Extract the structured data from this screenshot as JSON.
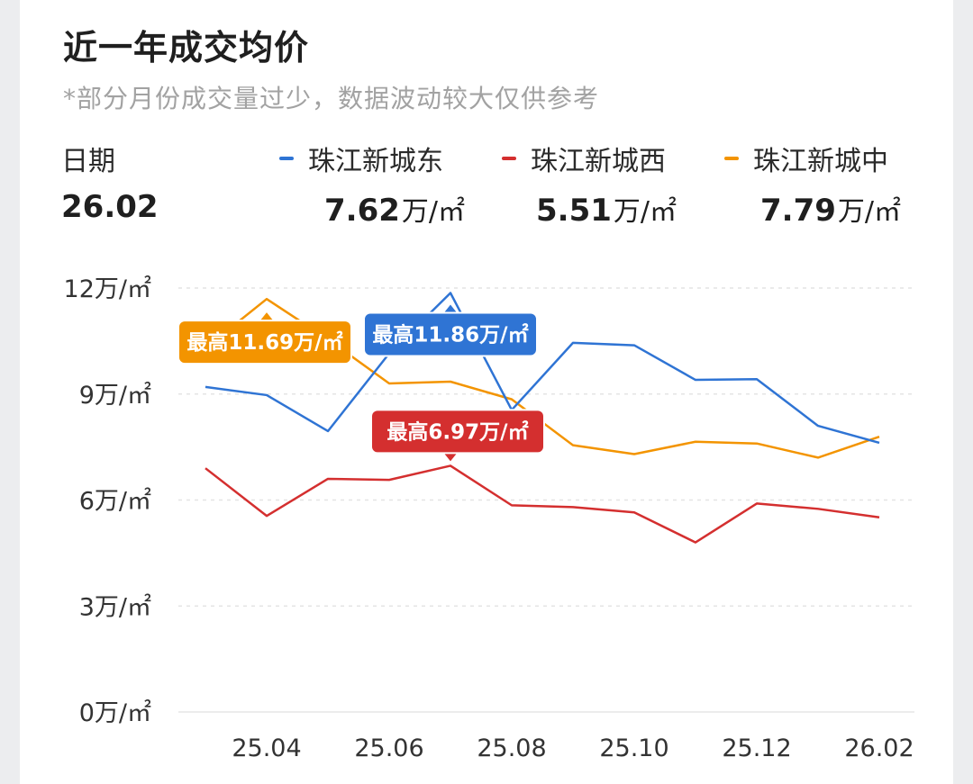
{
  "title": "近一年成交均价",
  "subtitle": "*部分月份成交量过少，数据波动较大仅供参考",
  "summary": {
    "date_label": "日期",
    "date_value": "26.02",
    "unit": "万/㎡",
    "series": [
      {
        "name": "珠江新城东",
        "value": "7.62",
        "color": "#2f74d4"
      },
      {
        "name": "珠江新城西",
        "value": "5.51",
        "color": "#d42f2f"
      },
      {
        "name": "珠江新城中",
        "value": "7.79",
        "color": "#f39400"
      }
    ]
  },
  "chart_data": {
    "type": "line",
    "x": [
      "25.03",
      "25.04",
      "25.05",
      "25.06",
      "25.07",
      "25.08",
      "25.09",
      "25.10",
      "25.11",
      "25.12",
      "26.01",
      "26.02"
    ],
    "xtick_labels": [
      "25.04",
      "25.06",
      "25.08",
      "25.10",
      "25.12",
      "26.02"
    ],
    "ytick_labels": [
      "0万/㎡",
      "3万/㎡",
      "6万/㎡",
      "9万/㎡",
      "12万/㎡"
    ],
    "yticks": [
      0,
      3,
      6,
      9,
      12
    ],
    "ylim": [
      0,
      12
    ],
    "grid": true,
    "series": [
      {
        "name": "珠江新城东",
        "color": "#2f74d4",
        "values": [
          9.2,
          8.97,
          7.95,
          10.15,
          11.86,
          8.55,
          10.45,
          10.38,
          9.4,
          9.42,
          8.1,
          7.62
        ],
        "peak_label": "最高11.86万/㎡",
        "peak_index": 4
      },
      {
        "name": "珠江新城西",
        "color": "#d42f2f",
        "values": [
          6.9,
          5.55,
          6.6,
          6.57,
          6.97,
          5.85,
          5.8,
          5.65,
          4.8,
          5.9,
          5.75,
          5.51
        ],
        "peak_label": "最高6.97万/㎡",
        "peak_index": 4
      },
      {
        "name": "珠江新城中",
        "color": "#f39400",
        "values": [
          10.3,
          11.69,
          10.55,
          9.3,
          9.35,
          8.85,
          7.55,
          7.3,
          7.65,
          7.6,
          7.2,
          7.79
        ],
        "peak_label": "最高11.69万/㎡",
        "peak_index": 1
      }
    ]
  }
}
